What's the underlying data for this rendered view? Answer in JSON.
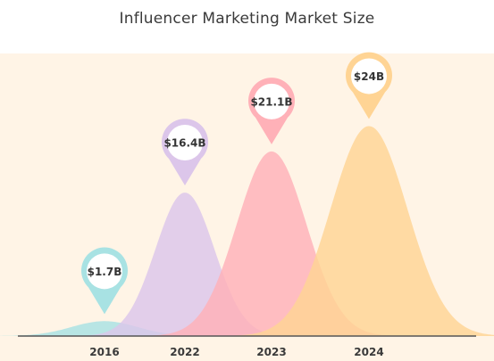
{
  "chart_data": {
    "type": "area",
    "title": "Influencer Marketing Market Size",
    "categories": [
      "2016",
      "2022",
      "2023",
      "2024"
    ],
    "values": [
      1.7,
      16.4,
      21.1,
      24
    ],
    "value_labels": [
      "$1.7B",
      "$16.4B",
      "$21.1B",
      "$24B"
    ],
    "unit": "$B",
    "ylim": [
      0,
      27
    ],
    "grid": false,
    "legend": "none"
  },
  "colors": {
    "background": "#fff4e6",
    "axis": "#555555",
    "series": [
      "#a8e2e3",
      "#dcc6ea",
      "#ffb1b8",
      "#ffd494"
    ]
  }
}
